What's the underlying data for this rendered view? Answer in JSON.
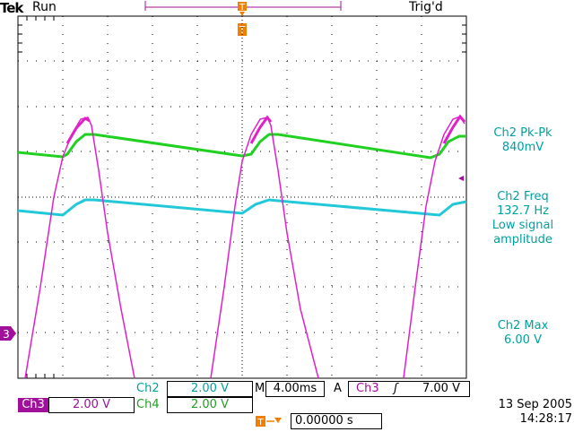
{
  "header": {
    "brand": "Tek",
    "run_state": "Run",
    "trigger_status": "Trig'd",
    "trigger_marker": "T"
  },
  "measurements": [
    {
      "label": "Ch2 Pk-Pk",
      "value": "840mV"
    },
    {
      "label": "Ch2 Freq",
      "value": "132.7 Hz",
      "note1": "Low signal",
      "note2": "amplitude"
    },
    {
      "label": "Ch2 Max",
      "value": "6.00 V"
    }
  ],
  "markers": {
    "ch3_ground": "3"
  },
  "channels": {
    "ch2": {
      "label": "Ch2",
      "scale": "2.00 V",
      "color": "#22c8c8"
    },
    "ch3": {
      "label": "Ch3",
      "scale": "2.00 V",
      "color": "#e020c8"
    },
    "ch4": {
      "label": "Ch4",
      "scale": "2.00 V",
      "color": "#20d020"
    }
  },
  "timebase": {
    "label": "M",
    "value": "4.00ms",
    "trigger_mode": "A",
    "trigger_source": "Ch3",
    "trigger_slope": "ʃ",
    "trigger_level": "7.00 V"
  },
  "trigger_position": {
    "icon": "T",
    "value": "0.00000 s"
  },
  "datetime": {
    "date": "13 Sep  2005",
    "time": "14:28:17"
  }
}
